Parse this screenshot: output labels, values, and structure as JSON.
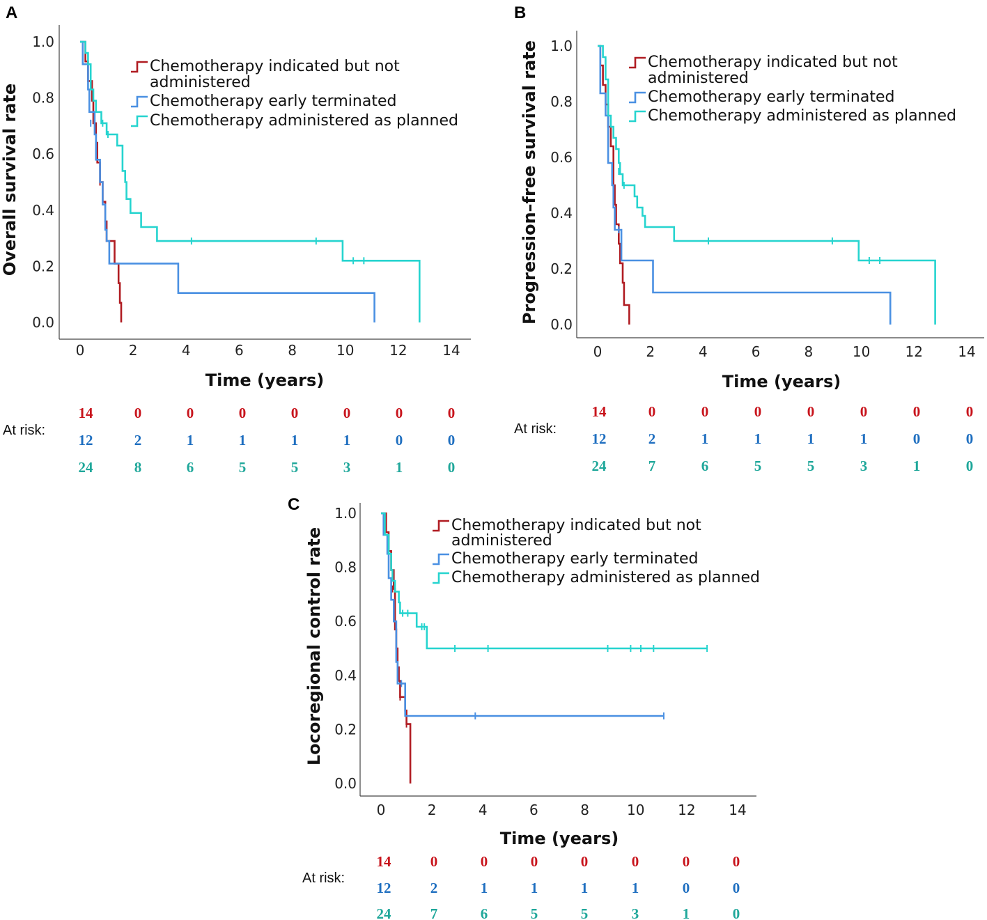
{
  "colors": {
    "not_administered": "#b01c22",
    "early_terminated": "#4a90e2",
    "as_planned": "#26d4cf",
    "risk_not_administered": "#c8141c",
    "risk_early_terminated": "#1f6fc0",
    "risk_as_planned": "#1fa79a"
  },
  "legend_labels": {
    "not_administered_line1": "Chemotherapy indicated but not",
    "not_administered_line2": "administered",
    "early_terminated": "Chemotherapy early terminated",
    "as_planned": "Chemotherapy administered as planned"
  },
  "risk_title": "At risk:",
  "chart_data": [
    {
      "panel": "A",
      "type": "line",
      "title": "",
      "xlabel": "Time (years)",
      "ylabel": "Overall survival rate",
      "xlim": [
        0,
        14
      ],
      "ylim": [
        0,
        1
      ],
      "x_ticks": [
        "0",
        "2",
        "4",
        "6",
        "8",
        "10",
        "12",
        "14"
      ],
      "y_ticks": [
        "0.0",
        "0.2",
        "0.4",
        "0.6",
        "0.8",
        "1.0"
      ],
      "series": [
        {
          "name": "Chemotherapy indicated but not administered",
          "color_key": "not_administered",
          "steps": [
            [
              0,
              1.0
            ],
            [
              0.2,
              0.93
            ],
            [
              0.3,
              0.86
            ],
            [
              0.45,
              0.79
            ],
            [
              0.5,
              0.71
            ],
            [
              0.6,
              0.64
            ],
            [
              0.65,
              0.57
            ],
            [
              0.75,
              0.5
            ],
            [
              0.85,
              0.43
            ],
            [
              0.95,
              0.36
            ],
            [
              1.0,
              0.29
            ],
            [
              1.3,
              0.21
            ],
            [
              1.45,
              0.14
            ],
            [
              1.5,
              0.07
            ],
            [
              1.55,
              0.0
            ]
          ],
          "censored": [
            [
              0.75,
              0.5
            ]
          ]
        },
        {
          "name": "Chemotherapy early terminated",
          "color_key": "early_terminated",
          "steps": [
            [
              0,
              1.0
            ],
            [
              0.1,
              0.92
            ],
            [
              0.3,
              0.83
            ],
            [
              0.35,
              0.75
            ],
            [
              0.55,
              0.67
            ],
            [
              0.6,
              0.58
            ],
            [
              0.75,
              0.5
            ],
            [
              0.85,
              0.42
            ],
            [
              0.95,
              0.33
            ],
            [
              1.0,
              0.29
            ],
            [
              1.1,
              0.21
            ],
            [
              3.7,
              0.105
            ],
            [
              11.1,
              0.0
            ]
          ],
          "censored": [
            [
              0.4,
              0.71
            ]
          ]
        },
        {
          "name": "Chemotherapy administered as planned",
          "color_key": "as_planned",
          "steps": [
            [
              0,
              1.0
            ],
            [
              0.2,
              0.96
            ],
            [
              0.3,
              0.92
            ],
            [
              0.4,
              0.83
            ],
            [
              0.5,
              0.79
            ],
            [
              0.6,
              0.75
            ],
            [
              0.8,
              0.71
            ],
            [
              1.0,
              0.67
            ],
            [
              1.4,
              0.63
            ],
            [
              1.6,
              0.54
            ],
            [
              1.7,
              0.5
            ],
            [
              1.75,
              0.44
            ],
            [
              1.9,
              0.39
            ],
            [
              2.3,
              0.34
            ],
            [
              2.9,
              0.29
            ],
            [
              9.9,
              0.22
            ],
            [
              12.8,
              0.0
            ]
          ],
          "censored": [
            [
              0.85,
              0.71
            ],
            [
              1.05,
              0.67
            ],
            [
              4.2,
              0.29
            ],
            [
              8.9,
              0.29
            ],
            [
              10.3,
              0.22
            ],
            [
              10.7,
              0.22
            ]
          ]
        }
      ],
      "at_risk": {
        "not_administered": [
          "14",
          "0",
          "0",
          "0",
          "0",
          "0",
          "0",
          "0"
        ],
        "early_terminated": [
          "12",
          "2",
          "1",
          "1",
          "1",
          "1",
          "0",
          "0"
        ],
        "as_planned": [
          "24",
          "8",
          "6",
          "5",
          "5",
          "3",
          "1",
          "0"
        ]
      }
    },
    {
      "panel": "B",
      "type": "line",
      "title": "",
      "xlabel": "Time (years)",
      "ylabel": "Progression–free survival rate",
      "xlim": [
        0,
        14
      ],
      "ylim": [
        0,
        1
      ],
      "x_ticks": [
        "0",
        "2",
        "4",
        "6",
        "8",
        "10",
        "12",
        "14"
      ],
      "y_ticks": [
        "0.0",
        "0.2",
        "0.4",
        "0.6",
        "0.8",
        "1.0"
      ],
      "series": [
        {
          "name": "Chemotherapy indicated but not administered",
          "color_key": "not_administered",
          "steps": [
            [
              0,
              1.0
            ],
            [
              0.1,
              0.93
            ],
            [
              0.2,
              0.86
            ],
            [
              0.3,
              0.79
            ],
            [
              0.4,
              0.71
            ],
            [
              0.5,
              0.64
            ],
            [
              0.6,
              0.5
            ],
            [
              0.65,
              0.43
            ],
            [
              0.7,
              0.36
            ],
            [
              0.8,
              0.29
            ],
            [
              0.85,
              0.22
            ],
            [
              0.95,
              0.15
            ],
            [
              1.0,
              0.07
            ],
            [
              1.2,
              0.0
            ]
          ],
          "censored": []
        },
        {
          "name": "Chemotherapy early terminated",
          "color_key": "early_terminated",
          "steps": [
            [
              0,
              1.0
            ],
            [
              0.1,
              0.83
            ],
            [
              0.3,
              0.75
            ],
            [
              0.4,
              0.58
            ],
            [
              0.55,
              0.5
            ],
            [
              0.6,
              0.42
            ],
            [
              0.65,
              0.34
            ],
            [
              0.9,
              0.23
            ],
            [
              2.1,
              0.115
            ],
            [
              11.1,
              0.0
            ]
          ],
          "censored": [
            [
              0.8,
              0.34
            ]
          ]
        },
        {
          "name": "Chemotherapy administered as planned",
          "color_key": "as_planned",
          "steps": [
            [
              0,
              1.0
            ],
            [
              0.2,
              0.96
            ],
            [
              0.3,
              0.88
            ],
            [
              0.4,
              0.75
            ],
            [
              0.5,
              0.71
            ],
            [
              0.6,
              0.67
            ],
            [
              0.7,
              0.63
            ],
            [
              0.8,
              0.58
            ],
            [
              0.85,
              0.54
            ],
            [
              0.95,
              0.5
            ],
            [
              1.4,
              0.46
            ],
            [
              1.5,
              0.42
            ],
            [
              1.7,
              0.39
            ],
            [
              1.8,
              0.35
            ],
            [
              2.9,
              0.3
            ],
            [
              9.9,
              0.23
            ],
            [
              12.8,
              0.0
            ]
          ],
          "censored": [
            [
              0.8,
              0.55
            ],
            [
              1.0,
              0.5
            ],
            [
              4.2,
              0.3
            ],
            [
              8.9,
              0.3
            ],
            [
              10.3,
              0.23
            ],
            [
              10.7,
              0.23
            ]
          ]
        }
      ],
      "at_risk": {
        "not_administered": [
          "14",
          "0",
          "0",
          "0",
          "0",
          "0",
          "0",
          "0"
        ],
        "early_terminated": [
          "12",
          "2",
          "1",
          "1",
          "1",
          "1",
          "0",
          "0"
        ],
        "as_planned": [
          "24",
          "7",
          "6",
          "5",
          "5",
          "3",
          "1",
          "0"
        ]
      }
    },
    {
      "panel": "C",
      "type": "line",
      "title": "",
      "xlabel": "Time (years)",
      "ylabel": "Locoregional control rate",
      "xlim": [
        0,
        14
      ],
      "ylim": [
        0,
        1
      ],
      "x_ticks": [
        "0",
        "2",
        "4",
        "6",
        "8",
        "10",
        "12",
        "14"
      ],
      "y_ticks": [
        "0.0",
        "0.2",
        "0.4",
        "0.6",
        "0.8",
        "1.0"
      ],
      "series": [
        {
          "name": "Chemotherapy indicated but not administered",
          "color_key": "not_administered",
          "steps": [
            [
              0,
              1.0
            ],
            [
              0.2,
              0.93
            ],
            [
              0.3,
              0.86
            ],
            [
              0.4,
              0.79
            ],
            [
              0.5,
              0.72
            ],
            [
              0.55,
              0.57
            ],
            [
              0.6,
              0.5
            ],
            [
              0.65,
              0.43
            ],
            [
              0.7,
              0.38
            ],
            [
              0.75,
              0.32
            ],
            [
              0.95,
              0.27
            ],
            [
              1.0,
              0.22
            ],
            [
              1.15,
              0.0
            ]
          ],
          "censored": [
            [
              0.45,
              0.72
            ],
            [
              0.75,
              0.32
            ],
            [
              1.0,
              0.22
            ]
          ]
        },
        {
          "name": "Chemotherapy early terminated",
          "color_key": "early_terminated",
          "steps": [
            [
              0,
              1.0
            ],
            [
              0.1,
              0.92
            ],
            [
              0.25,
              0.85
            ],
            [
              0.3,
              0.76
            ],
            [
              0.4,
              0.68
            ],
            [
              0.5,
              0.6
            ],
            [
              0.6,
              0.45
            ],
            [
              0.65,
              0.37
            ],
            [
              0.95,
              0.25
            ]
          ],
          "end": [
            11.1,
            0.25
          ],
          "censored": [
            [
              0.8,
              0.37
            ],
            [
              3.7,
              0.25
            ],
            [
              11.1,
              0.25
            ]
          ]
        },
        {
          "name": "Chemotherapy administered as planned",
          "color_key": "as_planned",
          "steps": [
            [
              0,
              1.0
            ],
            [
              0.15,
              0.92
            ],
            [
              0.3,
              0.85
            ],
            [
              0.4,
              0.79
            ],
            [
              0.45,
              0.75
            ],
            [
              0.55,
              0.71
            ],
            [
              0.7,
              0.67
            ],
            [
              0.75,
              0.63
            ],
            [
              1.4,
              0.58
            ],
            [
              1.8,
              0.5
            ]
          ],
          "end": [
            12.8,
            0.5
          ],
          "censored": [
            [
              0.85,
              0.63
            ],
            [
              1.05,
              0.63
            ],
            [
              1.6,
              0.58
            ],
            [
              1.7,
              0.58
            ],
            [
              2.9,
              0.5
            ],
            [
              4.2,
              0.5
            ],
            [
              8.9,
              0.5
            ],
            [
              9.8,
              0.5
            ],
            [
              10.2,
              0.5
            ],
            [
              10.7,
              0.5
            ],
            [
              12.8,
              0.5
            ]
          ]
        }
      ],
      "at_risk": {
        "not_administered": [
          "14",
          "0",
          "0",
          "0",
          "0",
          "0",
          "0",
          "0"
        ],
        "early_terminated": [
          "12",
          "2",
          "1",
          "1",
          "1",
          "1",
          "0",
          "0"
        ],
        "as_planned": [
          "24",
          "7",
          "6",
          "5",
          "5",
          "3",
          "1",
          "0"
        ]
      }
    }
  ]
}
